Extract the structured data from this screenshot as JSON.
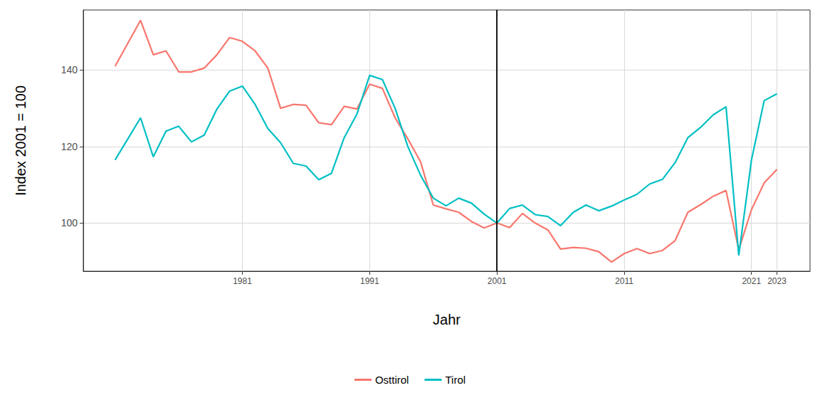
{
  "chart_data": {
    "type": "line",
    "x_label": "Jahr",
    "y_label": "Index 2001 = 100",
    "x": [
      1971,
      1972,
      1973,
      1974,
      1975,
      1976,
      1977,
      1978,
      1979,
      1980,
      1981,
      1982,
      1983,
      1984,
      1985,
      1986,
      1987,
      1988,
      1989,
      1990,
      1991,
      1992,
      1993,
      1994,
      1995,
      1996,
      1997,
      1998,
      1999,
      2000,
      2001,
      2002,
      2003,
      2004,
      2005,
      2006,
      2007,
      2008,
      2009,
      2010,
      2011,
      2012,
      2013,
      2014,
      2015,
      2016,
      2017,
      2018,
      2019,
      2020,
      2021,
      2022,
      2023
    ],
    "series": [
      {
        "name": "Osttirol",
        "color": "#F8766D",
        "values": [
          141,
          147,
          153,
          144,
          145,
          139.5,
          139.5,
          140.5,
          144,
          148.5,
          147.5,
          145,
          140.5,
          130,
          131,
          130.8,
          126.2,
          125.7,
          130.5,
          129.8,
          136.3,
          135.2,
          127.5,
          122,
          116,
          104.7,
          103.7,
          102.8,
          100.4,
          98.7,
          100,
          98.8,
          102.5,
          100,
          98.2,
          93.2,
          93.6,
          93.4,
          92.5,
          89.8,
          92,
          93.3,
          92,
          92.8,
          95.4,
          102.8,
          104.8,
          107,
          108.5,
          93,
          103.5,
          110.5,
          114
        ]
      },
      {
        "name": "Tirol",
        "color": "#00BFC4",
        "values": [
          116.5,
          122,
          127.5,
          117.3,
          124,
          125.3,
          121.2,
          123,
          129.8,
          134.5,
          135.8,
          131,
          124.7,
          121,
          115.6,
          114.9,
          111.3,
          113,
          122.3,
          128.5,
          138.6,
          137.5,
          130,
          120,
          112.5,
          106.5,
          104.5,
          106.5,
          105.2,
          102.3,
          100,
          103.8,
          104.7,
          102.2,
          101.7,
          99.3,
          102.8,
          104.7,
          103.2,
          104.4,
          106,
          107.5,
          110.2,
          111.4,
          115.8,
          122.3,
          125,
          128.3,
          130.4,
          91.5,
          116.5,
          132,
          133.8
        ]
      }
    ],
    "vline_x": 2001,
    "xlim": [
      1968.5,
      2025.6
    ],
    "xticks": [
      1981,
      1991,
      2001,
      2011,
      2021,
      2023
    ],
    "ylim": [
      87.4,
      155.7
    ],
    "yticks": [
      100,
      120,
      140
    ],
    "grid": true,
    "legend": "bottom"
  }
}
